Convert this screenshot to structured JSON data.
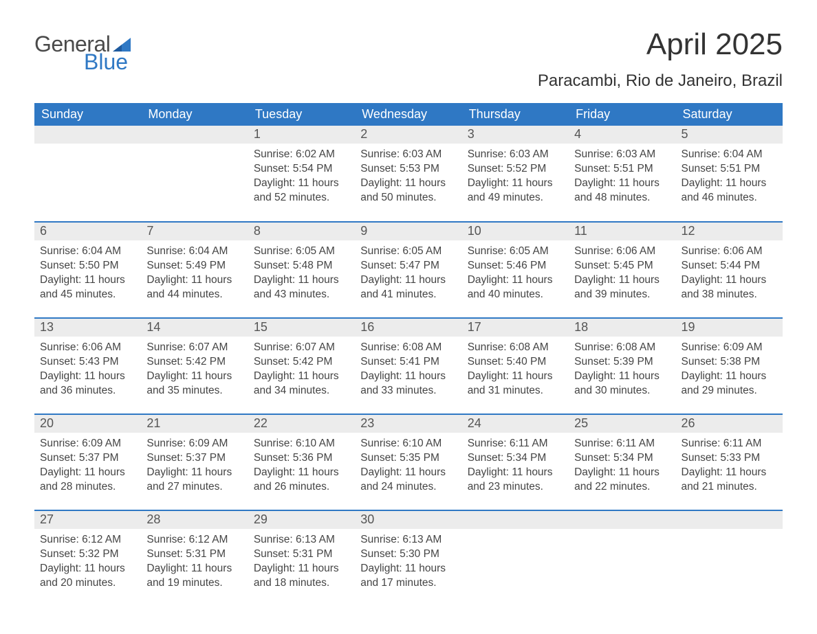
{
  "logo": {
    "text_general": "General",
    "text_blue": "Blue",
    "flag_color": "#2f78c4"
  },
  "title": "April 2025",
  "location": "Paracambi, Rio de Janeiro, Brazil",
  "colors": {
    "header_bg": "#2f78c4",
    "header_text": "#ffffff",
    "daynum_bg": "#ececec",
    "daynum_text": "#555555",
    "body_text": "#444444",
    "rule": "#2f78c4",
    "page_bg": "#ffffff"
  },
  "weekdays": [
    "Sunday",
    "Monday",
    "Tuesday",
    "Wednesday",
    "Thursday",
    "Friday",
    "Saturday"
  ],
  "weeks": [
    [
      {
        "n": "",
        "sunrise": "",
        "sunset": "",
        "daylight": ""
      },
      {
        "n": "",
        "sunrise": "",
        "sunset": "",
        "daylight": ""
      },
      {
        "n": "1",
        "sunrise": "Sunrise: 6:02 AM",
        "sunset": "Sunset: 5:54 PM",
        "daylight": "Daylight: 11 hours and 52 minutes."
      },
      {
        "n": "2",
        "sunrise": "Sunrise: 6:03 AM",
        "sunset": "Sunset: 5:53 PM",
        "daylight": "Daylight: 11 hours and 50 minutes."
      },
      {
        "n": "3",
        "sunrise": "Sunrise: 6:03 AM",
        "sunset": "Sunset: 5:52 PM",
        "daylight": "Daylight: 11 hours and 49 minutes."
      },
      {
        "n": "4",
        "sunrise": "Sunrise: 6:03 AM",
        "sunset": "Sunset: 5:51 PM",
        "daylight": "Daylight: 11 hours and 48 minutes."
      },
      {
        "n": "5",
        "sunrise": "Sunrise: 6:04 AM",
        "sunset": "Sunset: 5:51 PM",
        "daylight": "Daylight: 11 hours and 46 minutes."
      }
    ],
    [
      {
        "n": "6",
        "sunrise": "Sunrise: 6:04 AM",
        "sunset": "Sunset: 5:50 PM",
        "daylight": "Daylight: 11 hours and 45 minutes."
      },
      {
        "n": "7",
        "sunrise": "Sunrise: 6:04 AM",
        "sunset": "Sunset: 5:49 PM",
        "daylight": "Daylight: 11 hours and 44 minutes."
      },
      {
        "n": "8",
        "sunrise": "Sunrise: 6:05 AM",
        "sunset": "Sunset: 5:48 PM",
        "daylight": "Daylight: 11 hours and 43 minutes."
      },
      {
        "n": "9",
        "sunrise": "Sunrise: 6:05 AM",
        "sunset": "Sunset: 5:47 PM",
        "daylight": "Daylight: 11 hours and 41 minutes."
      },
      {
        "n": "10",
        "sunrise": "Sunrise: 6:05 AM",
        "sunset": "Sunset: 5:46 PM",
        "daylight": "Daylight: 11 hours and 40 minutes."
      },
      {
        "n": "11",
        "sunrise": "Sunrise: 6:06 AM",
        "sunset": "Sunset: 5:45 PM",
        "daylight": "Daylight: 11 hours and 39 minutes."
      },
      {
        "n": "12",
        "sunrise": "Sunrise: 6:06 AM",
        "sunset": "Sunset: 5:44 PM",
        "daylight": "Daylight: 11 hours and 38 minutes."
      }
    ],
    [
      {
        "n": "13",
        "sunrise": "Sunrise: 6:06 AM",
        "sunset": "Sunset: 5:43 PM",
        "daylight": "Daylight: 11 hours and 36 minutes."
      },
      {
        "n": "14",
        "sunrise": "Sunrise: 6:07 AM",
        "sunset": "Sunset: 5:42 PM",
        "daylight": "Daylight: 11 hours and 35 minutes."
      },
      {
        "n": "15",
        "sunrise": "Sunrise: 6:07 AM",
        "sunset": "Sunset: 5:42 PM",
        "daylight": "Daylight: 11 hours and 34 minutes."
      },
      {
        "n": "16",
        "sunrise": "Sunrise: 6:08 AM",
        "sunset": "Sunset: 5:41 PM",
        "daylight": "Daylight: 11 hours and 33 minutes."
      },
      {
        "n": "17",
        "sunrise": "Sunrise: 6:08 AM",
        "sunset": "Sunset: 5:40 PM",
        "daylight": "Daylight: 11 hours and 31 minutes."
      },
      {
        "n": "18",
        "sunrise": "Sunrise: 6:08 AM",
        "sunset": "Sunset: 5:39 PM",
        "daylight": "Daylight: 11 hours and 30 minutes."
      },
      {
        "n": "19",
        "sunrise": "Sunrise: 6:09 AM",
        "sunset": "Sunset: 5:38 PM",
        "daylight": "Daylight: 11 hours and 29 minutes."
      }
    ],
    [
      {
        "n": "20",
        "sunrise": "Sunrise: 6:09 AM",
        "sunset": "Sunset: 5:37 PM",
        "daylight": "Daylight: 11 hours and 28 minutes."
      },
      {
        "n": "21",
        "sunrise": "Sunrise: 6:09 AM",
        "sunset": "Sunset: 5:37 PM",
        "daylight": "Daylight: 11 hours and 27 minutes."
      },
      {
        "n": "22",
        "sunrise": "Sunrise: 6:10 AM",
        "sunset": "Sunset: 5:36 PM",
        "daylight": "Daylight: 11 hours and 26 minutes."
      },
      {
        "n": "23",
        "sunrise": "Sunrise: 6:10 AM",
        "sunset": "Sunset: 5:35 PM",
        "daylight": "Daylight: 11 hours and 24 minutes."
      },
      {
        "n": "24",
        "sunrise": "Sunrise: 6:11 AM",
        "sunset": "Sunset: 5:34 PM",
        "daylight": "Daylight: 11 hours and 23 minutes."
      },
      {
        "n": "25",
        "sunrise": "Sunrise: 6:11 AM",
        "sunset": "Sunset: 5:34 PM",
        "daylight": "Daylight: 11 hours and 22 minutes."
      },
      {
        "n": "26",
        "sunrise": "Sunrise: 6:11 AM",
        "sunset": "Sunset: 5:33 PM",
        "daylight": "Daylight: 11 hours and 21 minutes."
      }
    ],
    [
      {
        "n": "27",
        "sunrise": "Sunrise: 6:12 AM",
        "sunset": "Sunset: 5:32 PM",
        "daylight": "Daylight: 11 hours and 20 minutes."
      },
      {
        "n": "28",
        "sunrise": "Sunrise: 6:12 AM",
        "sunset": "Sunset: 5:31 PM",
        "daylight": "Daylight: 11 hours and 19 minutes."
      },
      {
        "n": "29",
        "sunrise": "Sunrise: 6:13 AM",
        "sunset": "Sunset: 5:31 PM",
        "daylight": "Daylight: 11 hours and 18 minutes."
      },
      {
        "n": "30",
        "sunrise": "Sunrise: 6:13 AM",
        "sunset": "Sunset: 5:30 PM",
        "daylight": "Daylight: 11 hours and 17 minutes."
      },
      {
        "n": "",
        "sunrise": "",
        "sunset": "",
        "daylight": ""
      },
      {
        "n": "",
        "sunrise": "",
        "sunset": "",
        "daylight": ""
      },
      {
        "n": "",
        "sunrise": "",
        "sunset": "",
        "daylight": ""
      }
    ]
  ]
}
